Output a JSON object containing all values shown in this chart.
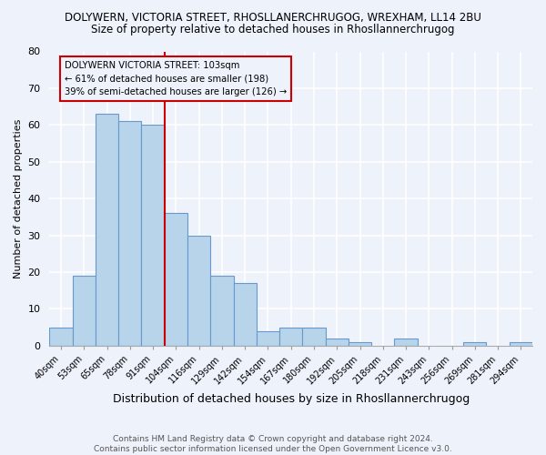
{
  "title_line1": "DOLYWERN, VICTORIA STREET, RHOSLLANERCHRUGOG, WREXHAM, LL14 2BU",
  "title_line2": "Size of property relative to detached houses in Rhosllannerchrugog",
  "xlabel": "Distribution of detached houses by size in Rhosllannerchrugog",
  "ylabel": "Number of detached properties",
  "categories": [
    "40sqm",
    "53sqm",
    "65sqm",
    "78sqm",
    "91sqm",
    "104sqm",
    "116sqm",
    "129sqm",
    "142sqm",
    "154sqm",
    "167sqm",
    "180sqm",
    "192sqm",
    "205sqm",
    "218sqm",
    "231sqm",
    "243sqm",
    "256sqm",
    "269sqm",
    "281sqm",
    "294sqm"
  ],
  "values": [
    5,
    19,
    63,
    61,
    60,
    36,
    30,
    19,
    17,
    4,
    5,
    5,
    2,
    1,
    0,
    2,
    0,
    0,
    1,
    0,
    1
  ],
  "bar_color": "#b8d4ea",
  "bar_edge_color": "#6699cc",
  "highlight_line_color": "#cc0000",
  "annotation_title": "DOLYWERN VICTORIA STREET: 103sqm",
  "annotation_line1": "← 61% of detached houses are smaller (198)",
  "annotation_line2": "39% of semi-detached houses are larger (126) →",
  "annotation_box_edge_color": "#cc0000",
  "ylim": [
    0,
    80
  ],
  "yticks": [
    0,
    10,
    20,
    30,
    40,
    50,
    60,
    70,
    80
  ],
  "footer_line1": "Contains HM Land Registry data © Crown copyright and database right 2024.",
  "footer_line2": "Contains public sector information licensed under the Open Government Licence v3.0.",
  "background_color": "#eef2fb"
}
